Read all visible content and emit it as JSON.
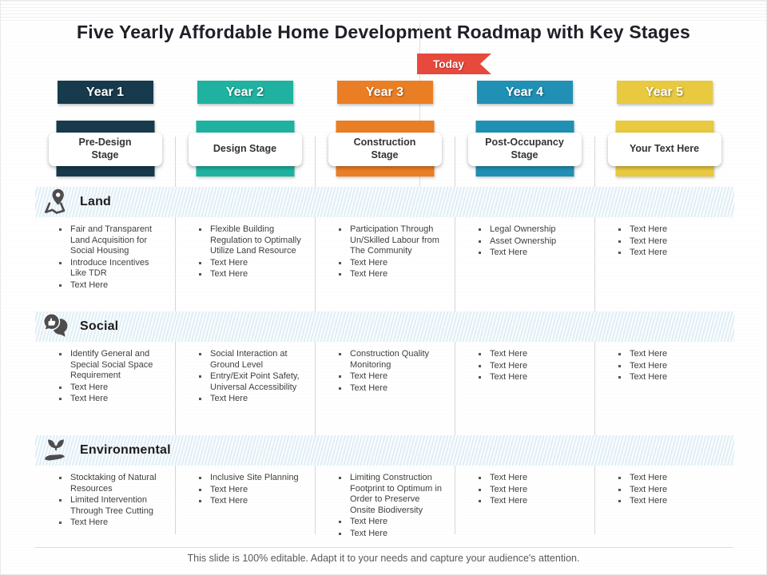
{
  "title": "Five Yearly Affordable Home Development Roadmap with Key Stages",
  "today_label": "Today",
  "footer": "This slide is 100% editable. Adapt it to your needs and capture your audience's attention.",
  "colors": {
    "today_red": "#E74A3D",
    "band_blue": "#EBF4F9",
    "divider_gray": "#D6D6D6",
    "bullet_text": "#3F3F3F"
  },
  "years": [
    {
      "label": "Year 1",
      "color": "#173A4C",
      "stage": "Pre-Design Stage"
    },
    {
      "label": "Year 2",
      "color": "#1FB2A0",
      "stage": "Design Stage"
    },
    {
      "label": "Year 3",
      "color": "#EA7E24",
      "stage": "Construction Stage"
    },
    {
      "label": "Year 4",
      "color": "#2090B4",
      "stage": "Post-Occupancy Stage"
    },
    {
      "label": "Year 5",
      "color": "#E8C93F",
      "stage": "Your Text Here"
    }
  ],
  "rows": [
    {
      "label": "Land",
      "icon": "map-pin-icon",
      "cells": [
        [
          "Fair and Transparent Land Acquisition for Social Housing",
          "Introduce Incentives Like TDR",
          "Text Here"
        ],
        [
          "Flexible Building Regulation to Optimally Utilize Land Resource",
          "Text Here",
          "Text Here"
        ],
        [
          "Participation Through Un/Skilled Labour from The Community",
          "Text Here",
          "Text Here"
        ],
        [
          "Legal Ownership",
          "Asset Ownership",
          "Text Here"
        ],
        [
          "Text Here",
          "Text Here",
          "Text Here"
        ]
      ]
    },
    {
      "label": "Social",
      "icon": "chat-thumbs-up-icon",
      "cells": [
        [
          "Identify General and Special Social Space Requirement",
          "Text Here",
          "Text Here"
        ],
        [
          "Social Interaction at Ground Level",
          "Entry/Exit Point Safety, Universal Accessibility",
          "Text Here"
        ],
        [
          "Construction Quality Monitoring",
          "Text Here",
          "Text Here"
        ],
        [
          "Text Here",
          "Text Here",
          "Text Here"
        ],
        [
          "Text Here",
          "Text Here",
          "Text Here"
        ]
      ]
    },
    {
      "label": "Environmental",
      "icon": "hand-plant-icon",
      "cells": [
        [
          "Stocktaking of Natural Resources",
          "Limited Intervention Through Tree Cutting",
          "Text Here"
        ],
        [
          "Inclusive Site Planning",
          "Text Here",
          "Text Here"
        ],
        [
          "Limiting Construction Footprint to Optimum in Order to Preserve Onsite Biodiversity",
          "Text Here",
          "Text Here"
        ],
        [
          "Text Here",
          "Text Here",
          "Text Here"
        ],
        [
          "Text Here",
          "Text Here",
          "Text Here"
        ]
      ]
    }
  ]
}
